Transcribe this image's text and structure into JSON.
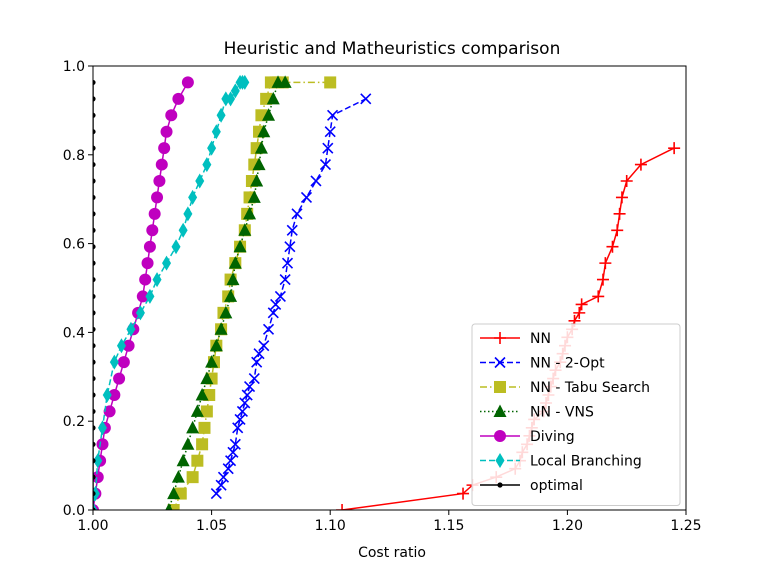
{
  "chart_data": {
    "type": "line",
    "title": "Heuristic and Matheuristics comparison",
    "xlabel": "Cost ratio",
    "ylabel": "",
    "xlim": [
      1.0,
      1.25
    ],
    "ylim": [
      0.0,
      1.0
    ],
    "xticks": [
      "1.00",
      "1.05",
      "1.10",
      "1.15",
      "1.20",
      "1.25"
    ],
    "yticks": [
      "0.0",
      "0.2",
      "0.4",
      "0.6",
      "0.8",
      "1.0"
    ],
    "grid": false,
    "legend_position": "lower-right",
    "series": [
      {
        "name": "NN",
        "color": "#ff0000",
        "marker": "plus",
        "linestyle": "solid",
        "x": [
          1.105,
          1.156,
          1.16,
          1.17,
          1.178,
          1.18,
          1.181,
          1.183,
          1.184,
          1.185,
          1.186,
          1.19,
          1.191,
          1.192,
          1.193,
          1.194,
          1.195,
          1.197,
          1.198,
          1.199,
          1.2,
          1.202,
          1.203,
          1.205,
          1.206,
          1.213,
          1.215,
          1.216,
          1.219,
          1.221,
          1.222,
          1.223,
          1.225,
          1.231,
          1.245
        ],
        "y": [
          0.0,
          0.037,
          0.056,
          0.074,
          0.093,
          0.111,
          0.13,
          0.148,
          0.167,
          0.185,
          0.204,
          0.222,
          0.241,
          0.259,
          0.278,
          0.296,
          0.315,
          0.333,
          0.352,
          0.37,
          0.389,
          0.407,
          0.426,
          0.444,
          0.463,
          0.481,
          0.519,
          0.556,
          0.593,
          0.63,
          0.667,
          0.704,
          0.741,
          0.778,
          0.815
        ]
      },
      {
        "name": "NN - 2-Opt",
        "color": "#0000ff",
        "marker": "x",
        "linestyle": "dashed",
        "x": [
          1.052,
          1.054,
          1.055,
          1.057,
          1.058,
          1.059,
          1.06,
          1.061,
          1.062,
          1.063,
          1.064,
          1.065,
          1.066,
          1.068,
          1.069,
          1.07,
          1.072,
          1.074,
          1.076,
          1.077,
          1.079,
          1.081,
          1.082,
          1.083,
          1.084,
          1.086,
          1.09,
          1.094,
          1.098,
          1.099,
          1.1,
          1.101,
          1.115
        ],
        "y": [
          0.037,
          0.056,
          0.074,
          0.093,
          0.111,
          0.13,
          0.148,
          0.185,
          0.204,
          0.222,
          0.241,
          0.259,
          0.278,
          0.296,
          0.333,
          0.352,
          0.37,
          0.407,
          0.444,
          0.463,
          0.481,
          0.519,
          0.556,
          0.593,
          0.63,
          0.667,
          0.704,
          0.741,
          0.778,
          0.815,
          0.852,
          0.889,
          0.926
        ]
      },
      {
        "name": "NN - Tabu Search",
        "color": "#bcbd22",
        "marker": "square",
        "linestyle": "dashdot",
        "x": [
          1.034,
          1.037,
          1.042,
          1.044,
          1.046,
          1.047,
          1.048,
          1.049,
          1.05,
          1.051,
          1.052,
          1.054,
          1.055,
          1.057,
          1.058,
          1.06,
          1.062,
          1.064,
          1.065,
          1.066,
          1.067,
          1.068,
          1.069,
          1.07,
          1.071,
          1.073,
          1.075,
          1.077,
          1.078,
          1.08,
          1.1
        ],
        "y": [
          0.0,
          0.037,
          0.074,
          0.111,
          0.148,
          0.185,
          0.222,
          0.259,
          0.296,
          0.333,
          0.37,
          0.407,
          0.444,
          0.481,
          0.519,
          0.556,
          0.593,
          0.63,
          0.667,
          0.704,
          0.741,
          0.778,
          0.815,
          0.852,
          0.889,
          0.926,
          0.963,
          0.963,
          0.963,
          0.963,
          0.963
        ]
      },
      {
        "name": "NN - VNS",
        "color": "#006400",
        "marker": "triangle",
        "linestyle": "dotted",
        "x": [
          1.032,
          1.034,
          1.036,
          1.038,
          1.04,
          1.042,
          1.044,
          1.046,
          1.048,
          1.05,
          1.052,
          1.054,
          1.056,
          1.058,
          1.059,
          1.06,
          1.062,
          1.064,
          1.066,
          1.068,
          1.069,
          1.07,
          1.071,
          1.072,
          1.074,
          1.076,
          1.078,
          1.081
        ],
        "y": [
          0.0,
          0.037,
          0.074,
          0.111,
          0.148,
          0.185,
          0.222,
          0.259,
          0.296,
          0.333,
          0.37,
          0.407,
          0.444,
          0.481,
          0.519,
          0.556,
          0.593,
          0.63,
          0.667,
          0.704,
          0.741,
          0.778,
          0.815,
          0.852,
          0.889,
          0.926,
          0.963,
          0.963
        ]
      },
      {
        "name": "Diving",
        "color": "#bf00bf",
        "marker": "circle",
        "linestyle": "solid",
        "x": [
          1.0,
          1.001,
          1.002,
          1.003,
          1.004,
          1.005,
          1.007,
          1.009,
          1.011,
          1.013,
          1.015,
          1.017,
          1.019,
          1.021,
          1.022,
          1.023,
          1.024,
          1.025,
          1.026,
          1.027,
          1.028,
          1.029,
          1.03,
          1.031,
          1.033,
          1.036,
          1.04
        ],
        "y": [
          0.0,
          0.037,
          0.074,
          0.111,
          0.148,
          0.185,
          0.222,
          0.259,
          0.296,
          0.333,
          0.37,
          0.407,
          0.444,
          0.481,
          0.519,
          0.556,
          0.593,
          0.63,
          0.667,
          0.704,
          0.741,
          0.778,
          0.815,
          0.852,
          0.889,
          0.926,
          0.963
        ]
      },
      {
        "name": "Local Branching",
        "color": "#00bfbf",
        "marker": "thin_diamond",
        "linestyle": "dashed",
        "x": [
          1.0,
          1.001,
          1.002,
          1.004,
          1.006,
          1.009,
          1.012,
          1.016,
          1.02,
          1.024,
          1.027,
          1.031,
          1.035,
          1.038,
          1.04,
          1.042,
          1.045,
          1.048,
          1.05,
          1.052,
          1.054,
          1.056,
          1.058,
          1.06,
          1.062,
          1.063,
          1.064
        ],
        "y": [
          0.0,
          0.037,
          0.111,
          0.185,
          0.259,
          0.333,
          0.37,
          0.407,
          0.444,
          0.481,
          0.519,
          0.556,
          0.593,
          0.63,
          0.667,
          0.704,
          0.741,
          0.778,
          0.815,
          0.852,
          0.889,
          0.926,
          0.926,
          0.944,
          0.963,
          0.963,
          0.963
        ]
      },
      {
        "name": "optimal",
        "color": "#000000",
        "marker": "point",
        "linestyle": "solid",
        "x": [
          1.0,
          1.0,
          1.0,
          1.0,
          1.0,
          1.0,
          1.0,
          1.0,
          1.0,
          1.0,
          1.0,
          1.0,
          1.0,
          1.0,
          1.0,
          1.0,
          1.0,
          1.0,
          1.0,
          1.0,
          1.0,
          1.0,
          1.0,
          1.0,
          1.0,
          1.0,
          1.0
        ],
        "y": [
          0.0,
          0.037,
          0.074,
          0.111,
          0.148,
          0.185,
          0.222,
          0.259,
          0.296,
          0.333,
          0.37,
          0.407,
          0.444,
          0.481,
          0.519,
          0.556,
          0.593,
          0.63,
          0.667,
          0.704,
          0.741,
          0.778,
          0.815,
          0.852,
          0.889,
          0.926,
          0.963
        ]
      }
    ]
  }
}
